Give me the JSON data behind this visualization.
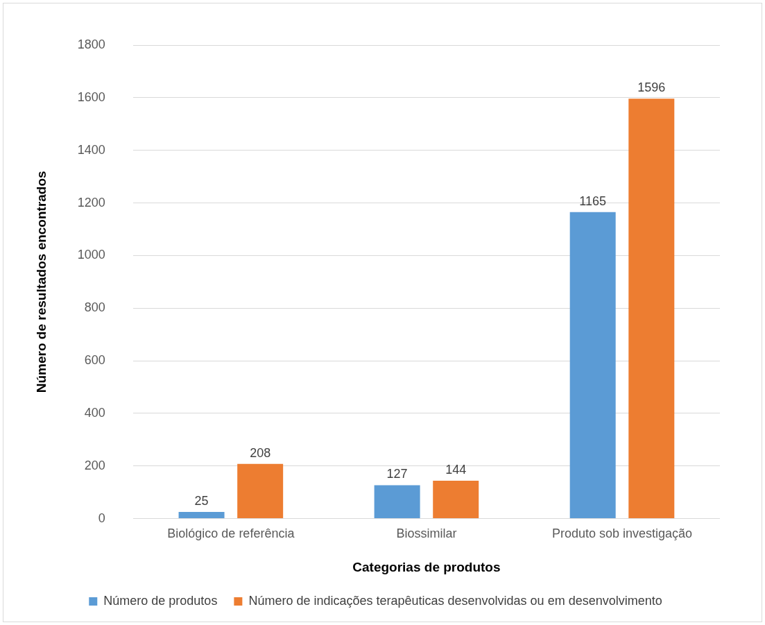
{
  "chart_data": {
    "type": "bar",
    "xlabel": "Categorias de produtos",
    "ylabel": "Número de resultados encontrados",
    "categories": [
      "Biológico de referência",
      "Biossimilar",
      "Produto sob investigação"
    ],
    "series": [
      {
        "name": "Número de produtos",
        "color": "#5b9bd5",
        "values": [
          25,
          127,
          1165
        ]
      },
      {
        "name": "Número de indicações terapêuticas desenvolvidas ou em desenvolvimento",
        "color": "#ed7d31",
        "values": [
          208,
          144,
          1596
        ]
      }
    ],
    "ylim": [
      0,
      1800
    ],
    "yticks": [
      0,
      200,
      400,
      600,
      800,
      1000,
      1200,
      1400,
      1600,
      1800
    ],
    "grid": "y",
    "legend": "bottom",
    "data_labels": true
  }
}
